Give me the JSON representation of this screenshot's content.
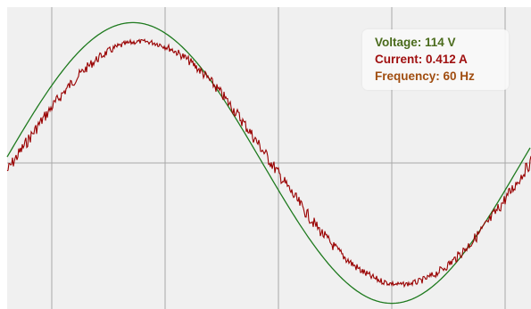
{
  "readout": {
    "voltage": "Voltage: 114 V",
    "current": "Current: 0.412 A",
    "frequency": "Frequency: 60 Hz"
  },
  "colors": {
    "background": "#f0f0f0",
    "grid": "#a8a8a8",
    "voltage": "#1e7a1e",
    "current": "#990000",
    "voltage_text": "#4a6b1c",
    "current_text": "#a01010",
    "frequency_text": "#a04d10"
  },
  "chart_data": {
    "type": "line",
    "title": "",
    "xlabel": "",
    "ylabel": "",
    "grid": true,
    "x_range": [
      0,
      1.15
    ],
    "y_range": [
      -1.2,
      1.2
    ],
    "series": [
      {
        "x_start": -0.02,
        "cycles": 1.02,
        "amplitude": 1.11,
        "noisy": false
      },
      {
        "x_start": 0,
        "cycles": 1.0,
        "amplitude": 0.96,
        "noise": 0.08,
        "noisy": true
      }
    ]
  }
}
